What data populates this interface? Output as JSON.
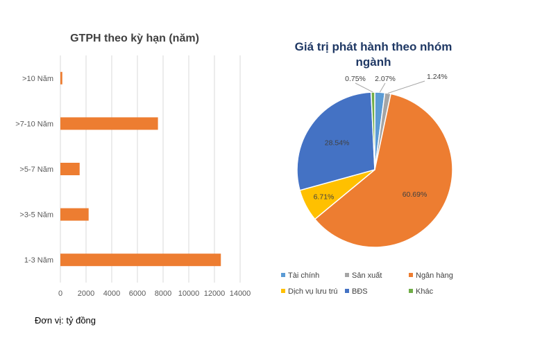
{
  "chart_data": [
    {
      "type": "bar",
      "orientation": "horizontal",
      "title": "GTPH theo kỳ hạn (năm)",
      "categories": [
        ">10 Năm",
        ">7-10 Năm",
        ">5-7 Năm",
        ">3-5 Năm",
        "1-3 Năm"
      ],
      "values": [
        150,
        7600,
        1500,
        2200,
        12500
      ],
      "xlim": [
        0,
        14000
      ],
      "xticks": [
        "0",
        "2000",
        "4000",
        "6000",
        "8000",
        "10000",
        "12000",
        "14000"
      ],
      "color": "#ed7d31",
      "grid": true
    },
    {
      "type": "pie",
      "title_line1": "Giá trị phát hành theo nhóm",
      "title_line2": "ngành",
      "labels": [
        "Tài chính",
        "Sản xuất",
        "Ngân hàng",
        "Dịch vụ lưu trú",
        "BĐS",
        "Khác"
      ],
      "values": [
        2.07,
        1.24,
        60.69,
        6.71,
        28.54,
        0.75
      ],
      "value_labels": [
        "2.07%",
        "1.24%",
        "60.69%",
        "6.71%",
        "28.54%",
        "0.75%"
      ],
      "colors": [
        "#5b9bd5",
        "#a5a5a5",
        "#ed7d31",
        "#ffc000",
        "#4472c4",
        "#70ad47"
      ],
      "legend": "bottom"
    }
  ],
  "note": "Đơn vị: tỷ đồng"
}
